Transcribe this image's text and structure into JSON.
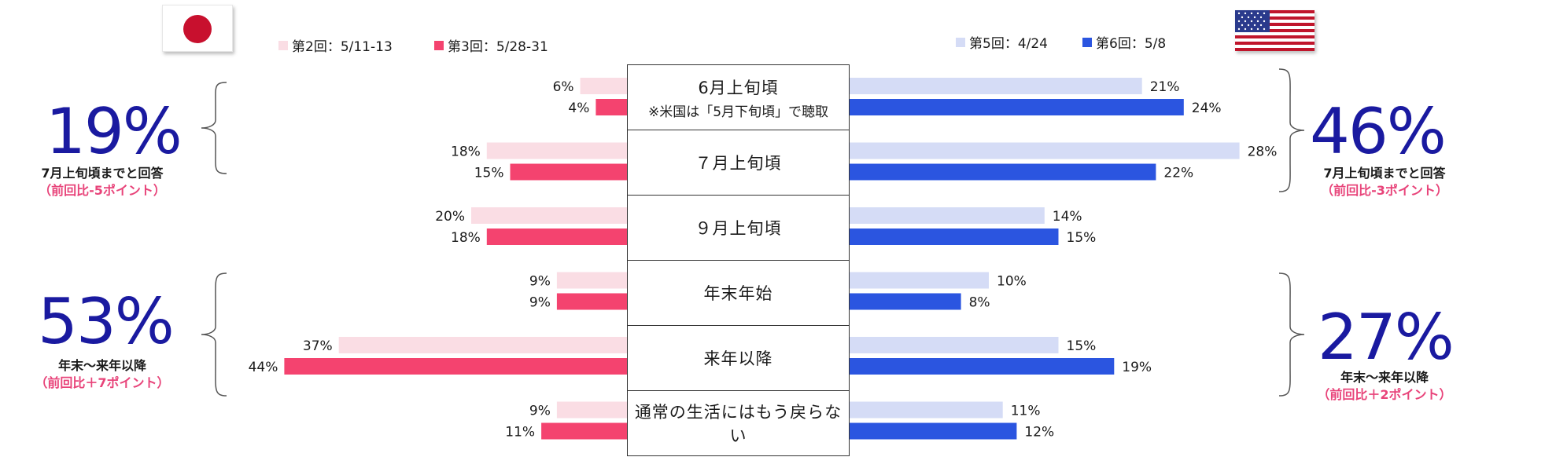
{
  "legend": {
    "japan": [
      {
        "label": "第2回：5/11-13",
        "color": "#fadde4"
      },
      {
        "label": "第3回：5/28-31",
        "color": "#f4436f"
      }
    ],
    "us": [
      {
        "label": "第5回：4/24",
        "color": "#d5dcf6"
      },
      {
        "label": "第6回：5/8",
        "color": "#2b55e0"
      }
    ]
  },
  "categories": [
    {
      "main": "6月上旬頃",
      "sub": "※米国は「5月下旬頃」で聴取"
    },
    {
      "main": "７月上旬頃",
      "sub": ""
    },
    {
      "main": "９月上旬頃",
      "sub": ""
    },
    {
      "main": "年末年始",
      "sub": ""
    },
    {
      "main": "来年以降",
      "sub": ""
    },
    {
      "main": "通常の生活にはもう戻らない",
      "sub": ""
    }
  ],
  "summary": {
    "jp_top": {
      "value": "19%",
      "line1": "7月上旬頃までと回答",
      "line2": "（前回比-5ポイント）"
    },
    "jp_bottom": {
      "value": "53%",
      "line1": "年末～来年以降",
      "line2": "（前回比＋7ポイント）"
    },
    "us_top": {
      "value": "46%",
      "line1": "7月上旬頃までと回答",
      "line2": "（前回比-3ポイント）"
    },
    "us_bottom": {
      "value": "27%",
      "line1": "年末～来年以降",
      "line2": "（前回比＋2ポイント）"
    }
  },
  "chart_data": {
    "type": "bar",
    "categories": [
      "6月上旬頃",
      "７月上旬頃",
      "９月上旬頃",
      "年末年始",
      "来年以降",
      "通常の生活にはもう戻らない"
    ],
    "japan": {
      "series": [
        {
          "name": "第2回：5/11-13",
          "values": [
            6,
            18,
            20,
            9,
            37,
            9
          ],
          "labels": [
            "6%",
            "18%",
            "20%",
            "9%",
            "37%",
            "9%"
          ],
          "color": "#fadde4"
        },
        {
          "name": "第3回：5/28-31",
          "values": [
            4,
            15,
            18,
            9,
            44,
            11
          ],
          "labels": [
            "4%",
            "15%",
            "18%",
            "9%",
            "44%",
            "11%"
          ],
          "color": "#f4436f"
        }
      ]
    },
    "us": {
      "series": [
        {
          "name": "第5回：4/24",
          "values": [
            21,
            28,
            14,
            10,
            15,
            11
          ],
          "labels": [
            "21%",
            "28%",
            "14%",
            "10%",
            "15%",
            "11%"
          ],
          "color": "#d5dcf6"
        },
        {
          "name": "第6回：5/8",
          "values": [
            24,
            22,
            15,
            8,
            19,
            12
          ],
          "labels": [
            "24%",
            "22%",
            "15%",
            "8%",
            "19%",
            "12%"
          ],
          "color": "#2b55e0"
        }
      ]
    },
    "orientation": "horizontal-butterfly"
  }
}
